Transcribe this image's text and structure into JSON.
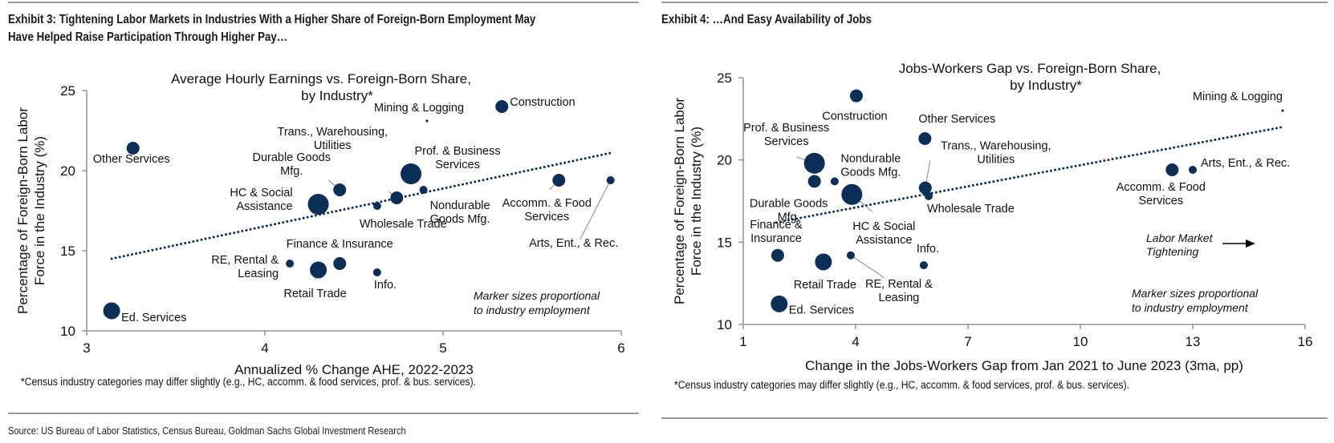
{
  "exhibit3": {
    "title_line1": "Exhibit 3: Tightening Labor Markets in Industries With a Higher Share of Foreign-Born Employment May",
    "title_line2": "Have Helped Raise Participation Through Higher Pay…",
    "footnote": "*Census industry categories may differ slightly (e.g., HC, accomm. & food services, prof. & bus. services)."
  },
  "exhibit4": {
    "title": "Exhibit 4: …And Easy Availability of Jobs",
    "footnote": "*Census industry categories may differ slightly (e.g., HC, accomm. & food services, prof. & bus. services)."
  },
  "source": "Source: US Bureau of Labor Statistics, Census Bureau, Goldman Sachs Global Investment Research",
  "colors": {
    "marker": "#0b2f56",
    "axis": "#7f7f7f",
    "leader": "#9a9a9a"
  },
  "chart_data": [
    {
      "type": "scatter",
      "title": "Average Hourly Earnings vs. Foreign-Born Share, by Industry*",
      "title_lines": [
        "Average Hourly Earnings vs. Foreign-Born Share,",
        "by Industry*"
      ],
      "xlabel": "Annualized % Change AHE, 2022-2023",
      "ylabel_lines": [
        "Percentage of Foreign-Born Labor",
        "Force in the Industry (%)"
      ],
      "xlim": [
        3,
        6
      ],
      "ylim": [
        10,
        25
      ],
      "xticks": [
        "3",
        "4",
        "5",
        "6"
      ],
      "yticks": [
        "10",
        "15",
        "20",
        "25"
      ],
      "grid": false,
      "note_lines": [
        "Marker sizes proportional",
        "to industry employment"
      ],
      "trendline": {
        "x": [
          3.14,
          5.94
        ],
        "y": [
          14.5,
          21.1
        ],
        "style": "dotted"
      },
      "points": [
        {
          "name": "Other Services",
          "label_lines": [
            "Other Services"
          ],
          "x": 3.26,
          "y": 21.4,
          "size": "medium"
        },
        {
          "name": "Ed. Services",
          "label_lines": [
            "Ed. Services"
          ],
          "x": 3.14,
          "y": 11.25,
          "size": "large"
        },
        {
          "name": "HC & Social Assistance",
          "label_lines": [
            "HC & Social",
            "Assistance"
          ],
          "x": 4.3,
          "y": 17.9,
          "size": "xlarge"
        },
        {
          "name": "Durable Goods Mfg.",
          "label_lines": [
            "Durable Goods",
            "Mfg."
          ],
          "x": 4.42,
          "y": 18.8,
          "size": "medium"
        },
        {
          "name": "Wholesale Trade",
          "label_lines": [
            "Wholesale Trade"
          ],
          "x": 4.63,
          "y": 17.8,
          "size": "small"
        },
        {
          "name": "Trans., Warehousing, Utilities",
          "label_lines": [
            "Trans., Warehousing,",
            "Utilities"
          ],
          "x": 4.74,
          "y": 18.3,
          "size": "medium"
        },
        {
          "name": "Prof. & Business Services",
          "label_lines": [
            "Prof. & Business",
            "Services"
          ],
          "x": 4.82,
          "y": 19.8,
          "size": "xlarge"
        },
        {
          "name": "Nondurable Goods Mfg.",
          "label_lines": [
            "Nondurable",
            "Goods Mfg."
          ],
          "x": 4.89,
          "y": 18.8,
          "size": "small"
        },
        {
          "name": "Mining & Logging",
          "label_lines": [
            "Mining & Logging"
          ],
          "x": 4.91,
          "y": 23.1,
          "size": "tiny"
        },
        {
          "name": "Construction",
          "label_lines": [
            "Construction"
          ],
          "x": 5.33,
          "y": 24.0,
          "size": "medium"
        },
        {
          "name": "Accomm. & Food Services",
          "label_lines": [
            "Accomm. & Food",
            "Services"
          ],
          "x": 5.65,
          "y": 19.4,
          "size": "medium"
        },
        {
          "name": "Arts, Ent., & Rec.",
          "label_lines": [
            "Arts, Ent., & Rec."
          ],
          "x": 5.94,
          "y": 19.4,
          "size": "small"
        },
        {
          "name": "RE, Rental & Leasing",
          "label_lines": [
            "RE, Rental &",
            "Leasing"
          ],
          "x": 4.14,
          "y": 14.2,
          "size": "small"
        },
        {
          "name": "Retail Trade",
          "label_lines": [
            "Retail Trade"
          ],
          "x": 4.3,
          "y": 13.8,
          "size": "large"
        },
        {
          "name": "Finance & Insurance",
          "label_lines": [
            "Finance & Insurance"
          ],
          "x": 4.42,
          "y": 14.2,
          "size": "medium"
        },
        {
          "name": "Info.",
          "label_lines": [
            "Info."
          ],
          "x": 4.63,
          "y": 13.65,
          "size": "small"
        }
      ]
    },
    {
      "type": "scatter",
      "title": "Jobs-Workers Gap vs. Foreign-Born Share, by Industry*",
      "title_lines": [
        "Jobs-Workers Gap vs. Foreign-Born Share,",
        "by Industry*"
      ],
      "xlabel": "Change in the Jobs-Workers Gap from Jan 2021 to June 2023 (3ma, pp)",
      "ylabel_lines": [
        "Percentage of Foreign-Born Labor",
        "Force in the Industry (%)"
      ],
      "xlim": [
        1,
        16
      ],
      "ylim": [
        10,
        25
      ],
      "xticks": [
        "1",
        "4",
        "7",
        "10",
        "13",
        "16"
      ],
      "yticks": [
        "10",
        "15",
        "20",
        "25"
      ],
      "grid": false,
      "note_lines": [
        "Marker sizes proportional",
        "to industry employment"
      ],
      "arrow_note_lines": [
        "Labor Market",
        "Tightening"
      ],
      "trendline": {
        "x": [
          1.88,
          15.4
        ],
        "y": [
          16.2,
          22.0
        ],
        "style": "dotted"
      },
      "points": [
        {
          "name": "Construction",
          "label_lines": [
            "Construction"
          ],
          "x": 4.02,
          "y": 23.9,
          "size": "medium"
        },
        {
          "name": "Other Services",
          "label_lines": [
            "Other Services"
          ],
          "x": 5.85,
          "y": 21.3,
          "size": "medium"
        },
        {
          "name": "Prof. & Business Services",
          "label_lines": [
            "Prof. & Business",
            "Services"
          ],
          "x": 2.9,
          "y": 19.8,
          "size": "xlarge"
        },
        {
          "name": "Durable Goods Mfg.",
          "label_lines": [
            "Durable Goods",
            "Mfg."
          ],
          "x": 2.9,
          "y": 18.7,
          "size": "medium"
        },
        {
          "name": "Nondurable Goods Mfg.",
          "label_lines": [
            "Nondurable",
            "Goods Mfg."
          ],
          "x": 3.44,
          "y": 18.7,
          "size": "small"
        },
        {
          "name": "HC & Social Assistance",
          "label_lines": [
            "HC & Social",
            "Assistance"
          ],
          "x": 3.9,
          "y": 17.9,
          "size": "xlarge"
        },
        {
          "name": "Trans., Warehousing, Utilities",
          "label_lines": [
            "Trans., Warehousing,",
            "Utilities"
          ],
          "x": 5.86,
          "y": 18.3,
          "size": "medium"
        },
        {
          "name": "Wholesale Trade",
          "label_lines": [
            "Wholesale Trade"
          ],
          "x": 5.95,
          "y": 17.8,
          "size": "small"
        },
        {
          "name": "Mining & Logging",
          "label_lines": [
            "Mining & Logging"
          ],
          "x": 15.4,
          "y": 23.0,
          "size": "tiny"
        },
        {
          "name": "Arts, Ent., & Rec.",
          "label_lines": [
            "Arts, Ent., & Rec."
          ],
          "x": 13.0,
          "y": 19.4,
          "size": "small"
        },
        {
          "name": "Accomm. & Food Services",
          "label_lines": [
            "Accomm. & Food",
            "Services"
          ],
          "x": 12.45,
          "y": 19.4,
          "size": "medium"
        },
        {
          "name": "Finance & Insurance",
          "label_lines": [
            "Finance &",
            "Insurance"
          ],
          "x": 1.92,
          "y": 14.2,
          "size": "medium"
        },
        {
          "name": "Retail Trade",
          "label_lines": [
            "Retail Trade"
          ],
          "x": 3.14,
          "y": 13.8,
          "size": "large"
        },
        {
          "name": "RE, Rental & Leasing",
          "label_lines": [
            "RE, Rental &",
            "Leasing"
          ],
          "x": 3.87,
          "y": 14.2,
          "size": "small"
        },
        {
          "name": "Info.",
          "label_lines": [
            "Info."
          ],
          "x": 5.82,
          "y": 13.6,
          "size": "small"
        },
        {
          "name": "Ed. Services",
          "label_lines": [
            "Ed. Services"
          ],
          "x": 1.96,
          "y": 11.25,
          "size": "large"
        }
      ]
    }
  ]
}
